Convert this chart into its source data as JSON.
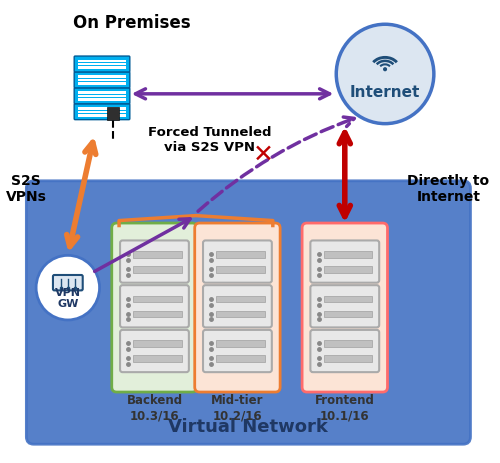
{
  "title": "Virtual Network",
  "on_premises_label": "On Premises",
  "internet_label": "Internet",
  "vpn_gw_label": "VPN\nGW",
  "s2s_label": "S2S\nVPNs",
  "forced_tunnel_label": "Forced Tunneled\nvia S2S VPN",
  "directly_label": "Directly to\nInternet",
  "backend_label": "Backend\n10.3/16",
  "midtier_label": "Mid-tier\n10.2/16",
  "frontend_label": "Frontend\n10.1/16",
  "bg_color": "#ffffff",
  "vnet_color": "#4472c4",
  "vnet_edge_color": "#4472c4",
  "backend_fill": "#e2efda",
  "backend_edge": "#70ad47",
  "midtier_fill": "#fce4d6",
  "midtier_edge": "#ed7d31",
  "frontend_fill": "#fce4d6",
  "frontend_edge": "#ff6b6b",
  "server_box_fill": "#d9d9d9",
  "server_box_edge": "#bfbfbf",
  "on_prem_server_fill": "#00b0f0",
  "internet_circle_fill": "#dce6f1",
  "internet_circle_edge": "#4472c4",
  "vpn_gw_circle_fill": "#ffffff",
  "vpn_gw_circle_edge": "#4472c4",
  "arrow_orange": "#ed7d31",
  "arrow_purple": "#7030a0",
  "arrow_red": "#c00000",
  "cross_color": "#c00000",
  "bracket_color": "#ed7d31",
  "dotted_line_color": "#7030a0"
}
